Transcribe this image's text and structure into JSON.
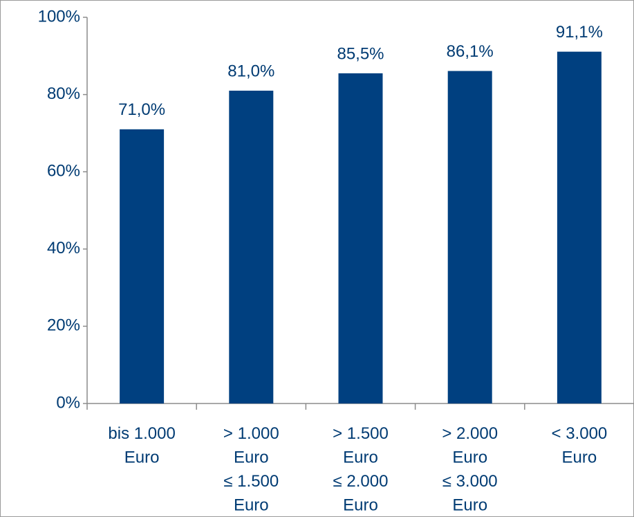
{
  "chart_data": {
    "type": "bar",
    "categories": [
      "bis 1.000\nEuro",
      "> 1.000\nEuro\n≤ 1.500\nEuro",
      "> 1.500\nEuro\n≤ 2.000\nEuro",
      "> 2.000\nEuro\n≤ 3.000\nEuro",
      "< 3.000\nEuro"
    ],
    "values": [
      71.0,
      81.0,
      85.5,
      86.1,
      91.1
    ],
    "value_labels": [
      "71,0%",
      "81,0%",
      "85,5%",
      "86,1%",
      "91,1%"
    ],
    "color": "#004080",
    "ylim": [
      0,
      100
    ],
    "yticks": [
      {
        "value": 0,
        "label": "0%"
      },
      {
        "value": 20,
        "label": "20%"
      },
      {
        "value": 40,
        "label": "40%"
      },
      {
        "value": 60,
        "label": "60%"
      },
      {
        "value": 80,
        "label": "80%"
      },
      {
        "value": 100,
        "label": "100%"
      }
    ],
    "grid": false
  }
}
